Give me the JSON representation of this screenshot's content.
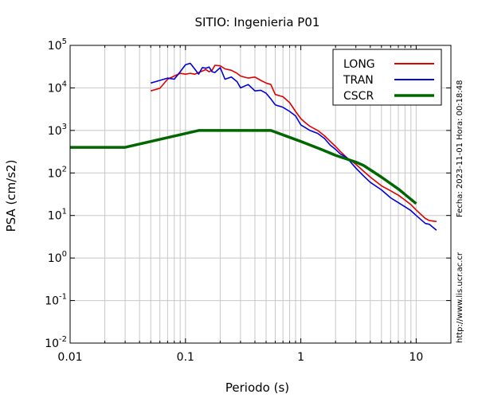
{
  "chart_data": {
    "type": "line",
    "title": "SITIO: Ingenieria P01",
    "xlabel": "Periodo (s)",
    "ylabel": "PSA (cm/s2)",
    "x_scale": "log",
    "y_scale": "log",
    "xlim": [
      0.01,
      20
    ],
    "ylim": [
      0.01,
      100000
    ],
    "x_ticks": [
      {
        "value": 0.01,
        "label": "0.01"
      },
      {
        "value": 0.1,
        "label": "0.1"
      },
      {
        "value": 1,
        "label": "1"
      },
      {
        "value": 10,
        "label": "10"
      }
    ],
    "y_ticks": [
      {
        "value": 0.01,
        "base": "10",
        "exp": "-2"
      },
      {
        "value": 0.1,
        "base": "10",
        "exp": "-1"
      },
      {
        "value": 1,
        "base": "10",
        "exp": "0"
      },
      {
        "value": 10,
        "base": "10",
        "exp": "1"
      },
      {
        "value": 100,
        "base": "10",
        "exp": "2"
      },
      {
        "value": 1000,
        "base": "10",
        "exp": "3"
      },
      {
        "value": 10000,
        "base": "10",
        "exp": "4"
      },
      {
        "value": 100000,
        "base": "10",
        "exp": "5"
      }
    ],
    "grid": true,
    "legend_position": "top-right",
    "side_notes": {
      "date_time": "Fecha: 2023-11-01  Hora: 00:18:48",
      "url": "http://www.lis.ucr.ac.cr"
    },
    "series": [
      {
        "name": "LONG",
        "color": "#e00000",
        "points": [
          [
            0.05,
            8500
          ],
          [
            0.06,
            9800
          ],
          [
            0.07,
            16000
          ],
          [
            0.08,
            19000
          ],
          [
            0.09,
            22000
          ],
          [
            0.1,
            21000
          ],
          [
            0.11,
            22000
          ],
          [
            0.12,
            21000
          ],
          [
            0.13,
            23000
          ],
          [
            0.14,
            25000
          ],
          [
            0.15,
            27000
          ],
          [
            0.16,
            24000
          ],
          [
            0.17,
            26000
          ],
          [
            0.18,
            34000
          ],
          [
            0.2,
            33000
          ],
          [
            0.22,
            28000
          ],
          [
            0.25,
            26000
          ],
          [
            0.28,
            22000
          ],
          [
            0.3,
            19000
          ],
          [
            0.35,
            17000
          ],
          [
            0.4,
            18000
          ],
          [
            0.45,
            15000
          ],
          [
            0.5,
            13000
          ],
          [
            0.55,
            12000
          ],
          [
            0.6,
            7000
          ],
          [
            0.7,
            6200
          ],
          [
            0.8,
            4500
          ],
          [
            0.9,
            2800
          ],
          [
            1.0,
            1900
          ],
          [
            1.1,
            1500
          ],
          [
            1.2,
            1250
          ],
          [
            1.4,
            1000
          ],
          [
            1.6,
            750
          ],
          [
            1.8,
            550
          ],
          [
            2.0,
            420
          ],
          [
            2.2,
            320
          ],
          [
            2.5,
            230
          ],
          [
            3.0,
            160
          ],
          [
            3.5,
            110
          ],
          [
            4.0,
            80
          ],
          [
            5.0,
            50
          ],
          [
            6.0,
            38
          ],
          [
            7.0,
            30
          ],
          [
            8.0,
            23
          ],
          [
            9.0,
            18
          ],
          [
            10.0,
            13.5
          ],
          [
            12.0,
            8.5
          ],
          [
            13.0,
            7.6
          ],
          [
            15.0,
            7.2
          ]
        ]
      },
      {
        "name": "TRAN",
        "color": "#0000dd",
        "points": [
          [
            0.05,
            13000
          ],
          [
            0.06,
            15000
          ],
          [
            0.07,
            17000
          ],
          [
            0.08,
            16000
          ],
          [
            0.09,
            24000
          ],
          [
            0.1,
            35000
          ],
          [
            0.11,
            38000
          ],
          [
            0.12,
            28000
          ],
          [
            0.13,
            21000
          ],
          [
            0.14,
            30000
          ],
          [
            0.15,
            29000
          ],
          [
            0.16,
            31000
          ],
          [
            0.17,
            24000
          ],
          [
            0.18,
            23000
          ],
          [
            0.2,
            30000
          ],
          [
            0.22,
            16000
          ],
          [
            0.25,
            18000
          ],
          [
            0.28,
            14000
          ],
          [
            0.3,
            10000
          ],
          [
            0.35,
            12000
          ],
          [
            0.4,
            8500
          ],
          [
            0.45,
            8800
          ],
          [
            0.5,
            7500
          ],
          [
            0.55,
            5500
          ],
          [
            0.6,
            4000
          ],
          [
            0.7,
            3500
          ],
          [
            0.8,
            2800
          ],
          [
            0.9,
            2200
          ],
          [
            1.0,
            1350
          ],
          [
            1.1,
            1150
          ],
          [
            1.2,
            1000
          ],
          [
            1.4,
            850
          ],
          [
            1.6,
            650
          ],
          [
            1.8,
            450
          ],
          [
            2.0,
            360
          ],
          [
            2.2,
            280
          ],
          [
            2.5,
            230
          ],
          [
            3.0,
            130
          ],
          [
            3.5,
            85
          ],
          [
            4.0,
            60
          ],
          [
            5.0,
            40
          ],
          [
            6.0,
            26
          ],
          [
            7.0,
            20
          ],
          [
            8.0,
            16
          ],
          [
            9.0,
            13
          ],
          [
            10.0,
            10
          ],
          [
            12.0,
            6.5
          ],
          [
            13.0,
            6.2
          ],
          [
            15.0,
            4.5
          ]
        ]
      },
      {
        "name": "CSCR",
        "color": "#006600",
        "points": [
          [
            0.01,
            400
          ],
          [
            0.03,
            400
          ],
          [
            0.13,
            1000
          ],
          [
            0.55,
            1000
          ],
          [
            1.0,
            550
          ],
          [
            1.5,
            360
          ],
          [
            2.0,
            260
          ],
          [
            3.0,
            180
          ],
          [
            3.5,
            150
          ],
          [
            5.0,
            80
          ],
          [
            7.0,
            42
          ],
          [
            10.0,
            19
          ]
        ]
      }
    ]
  }
}
